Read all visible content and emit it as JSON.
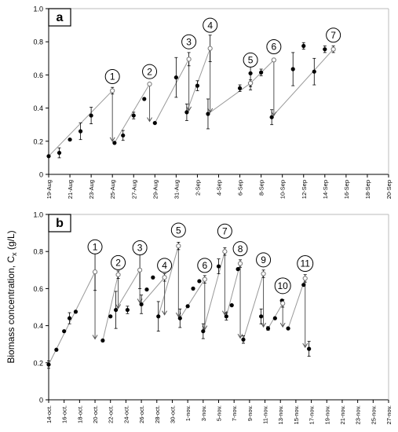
{
  "figure": {
    "y_axis_label": "Biomass concentration, C",
    "y_axis_label_sub": "x",
    "y_axis_label_unit": " (g/L)"
  },
  "chart_data": [
    {
      "type": "scatter",
      "panel": "a",
      "x_ticks": [
        "19-Aug",
        "21-Aug",
        "23-Aug",
        "25-Aug",
        "27-Aug",
        "29-Aug",
        "31-Aug",
        "2-Sep",
        "4-Sep",
        "6-Sep",
        "8-Sep",
        "10-Sep",
        "12-Sep",
        "14-Sep",
        "16-Sep",
        "18-Sep",
        "20-Sep"
      ],
      "ylim": [
        0,
        1.0
      ],
      "y_ticks": [
        "0",
        "0.2",
        "0.4",
        "0.6",
        "0.8",
        "1.0"
      ],
      "grid": false,
      "series": [
        {
          "marker": "filled",
          "points": [
            {
              "x": 0.0,
              "y": 0.11,
              "err": 0
            },
            {
              "x": 1.0,
              "y": 0.13,
              "err": 0.03
            },
            {
              "x": 2.0,
              "y": 0.21,
              "err": 0
            },
            {
              "x": 3.0,
              "y": 0.26,
              "err": 0.05
            },
            {
              "x": 4.0,
              "y": 0.355,
              "err": 0.05
            },
            {
              "x": 6.2,
              "y": 0.19,
              "err": 0
            },
            {
              "x": 7.0,
              "y": 0.235,
              "err": 0.03
            },
            {
              "x": 8.0,
              "y": 0.355,
              "err": 0.02
            },
            {
              "x": 9.0,
              "y": 0.455,
              "err": 0
            },
            {
              "x": 10.0,
              "y": 0.31,
              "err": 0
            },
            {
              "x": 12.0,
              "y": 0.585,
              "err": 0.12
            },
            {
              "x": 13.0,
              "y": 0.375,
              "err": 0.05
            },
            {
              "x": 14.0,
              "y": 0.535,
              "err": 0.03
            },
            {
              "x": 15.0,
              "y": 0.365,
              "err": 0.09
            },
            {
              "x": 18.0,
              "y": 0.52,
              "err": 0.02
            },
            {
              "x": 19.0,
              "y": 0.61,
              "err": 0.1
            },
            {
              "x": 20.0,
              "y": 0.615,
              "err": 0.02
            },
            {
              "x": 21.0,
              "y": 0.345,
              "err": 0.045
            },
            {
              "x": 23.0,
              "y": 0.635,
              "err": 0.1
            },
            {
              "x": 24.0,
              "y": 0.775,
              "err": 0.02
            },
            {
              "x": 25.0,
              "y": 0.62,
              "err": 0.08
            },
            {
              "x": 26.0,
              "y": 0.755,
              "err": 0.02
            }
          ]
        },
        {
          "marker": "open",
          "points": [
            {
              "x": 6.0,
              "y": 0.505,
              "err": 0.02
            },
            {
              "x": 9.5,
              "y": 0.545,
              "err": 0
            },
            {
              "x": 13.2,
              "y": 0.695,
              "err": 0.04
            },
            {
              "x": 15.2,
              "y": 0.76,
              "err": 0.08
            },
            {
              "x": 19.0,
              "y": 0.55,
              "err": 0.02
            },
            {
              "x": 21.2,
              "y": 0.69,
              "err": 0.01
            },
            {
              "x": 26.8,
              "y": 0.755,
              "err": 0.02
            }
          ]
        }
      ],
      "fits": [
        [
          [
            0.0,
            0.11
          ],
          [
            6.0,
            0.505
          ]
        ],
        [
          [
            6.2,
            0.19
          ],
          [
            9.5,
            0.545
          ]
        ],
        [
          [
            10.0,
            0.31
          ],
          [
            13.2,
            0.695
          ]
        ],
        [
          [
            13.0,
            0.375
          ],
          [
            15.2,
            0.76
          ]
        ],
        [
          [
            15.0,
            0.365
          ],
          [
            19.0,
            0.55
          ]
        ],
        [
          [
            19.0,
            0.55
          ],
          [
            21.2,
            0.69
          ]
        ],
        [
          [
            21.0,
            0.345
          ],
          [
            26.8,
            0.755
          ]
        ]
      ],
      "drops": [
        [
          6.0,
          0.505,
          0.19
        ],
        [
          9.5,
          0.545,
          0.31
        ],
        [
          13.2,
          0.695,
          0.375
        ],
        [
          15.2,
          0.76,
          0.365
        ],
        [
          19.0,
          0.55,
          0.52
        ],
        [
          21.2,
          0.69,
          0.345
        ]
      ],
      "annotations": [
        {
          "label": "1",
          "x": 6.0,
          "y": 0.59
        },
        {
          "label": "2",
          "x": 9.5,
          "y": 0.62
        },
        {
          "label": "3",
          "x": 13.2,
          "y": 0.8
        },
        {
          "label": "4",
          "x": 15.2,
          "y": 0.9
        },
        {
          "label": "5",
          "x": 19.0,
          "y": 0.69
        },
        {
          "label": "6",
          "x": 21.2,
          "y": 0.77
        },
        {
          "label": "7",
          "x": 26.8,
          "y": 0.84
        }
      ]
    },
    {
      "type": "scatter",
      "panel": "b",
      "x_ticks": [
        "14-oct.",
        "16-oct.",
        "18-oct.",
        "20-oct.",
        "22-oct.",
        "24-oct.",
        "26-oct.",
        "28-oct.",
        "30-oct.",
        "1-nov.",
        "3-nov.",
        "5-nov.",
        "7-nov.",
        "9-nov.",
        "11-nov.",
        "13-nov.",
        "15-nov.",
        "17-nov.",
        "19-nov.",
        "21-nov.",
        "23-nov.",
        "25-nov.",
        "27-nov."
      ],
      "ylim": [
        0,
        1.0
      ],
      "y_ticks": [
        "0",
        "0.2",
        "0.4",
        "0.6",
        "0.8",
        "1.0"
      ],
      "grid": false,
      "series": [
        {
          "marker": "filled",
          "points": [
            {
              "x": 0.0,
              "y": 0.19,
              "err": 0.02
            },
            {
              "x": 1.0,
              "y": 0.27,
              "err": 0
            },
            {
              "x": 2.0,
              "y": 0.37,
              "err": 0
            },
            {
              "x": 2.7,
              "y": 0.44,
              "err": 0.03
            },
            {
              "x": 3.5,
              "y": 0.475,
              "err": 0
            },
            {
              "x": 7.0,
              "y": 0.32,
              "err": 0
            },
            {
              "x": 8.0,
              "y": 0.45,
              "err": 0
            },
            {
              "x": 8.7,
              "y": 0.485,
              "err": 0.1
            },
            {
              "x": 10.2,
              "y": 0.485,
              "err": 0.02
            },
            {
              "x": 12.0,
              "y": 0.515,
              "err": 0.05
            },
            {
              "x": 12.7,
              "y": 0.595,
              "err": 0
            },
            {
              "x": 13.5,
              "y": 0.66,
              "err": 0
            },
            {
              "x": 14.2,
              "y": 0.45,
              "err": 0.08
            },
            {
              "x": 17.0,
              "y": 0.44,
              "err": 0.05
            },
            {
              "x": 18.0,
              "y": 0.505,
              "err": 0
            },
            {
              "x": 18.7,
              "y": 0.6,
              "err": 0
            },
            {
              "x": 19.5,
              "y": 0.64,
              "err": 0
            },
            {
              "x": 20.0,
              "y": 0.37,
              "err": 0.04
            },
            {
              "x": 22.0,
              "y": 0.72,
              "err": 0.04
            },
            {
              "x": 23.0,
              "y": 0.45,
              "err": 0.02
            },
            {
              "x": 23.7,
              "y": 0.51,
              "err": 0
            },
            {
              "x": 24.5,
              "y": 0.705,
              "err": 0
            },
            {
              "x": 25.2,
              "y": 0.325,
              "err": 0.02
            },
            {
              "x": 27.5,
              "y": 0.45,
              "err": 0.04
            },
            {
              "x": 28.4,
              "y": 0.385,
              "err": 0.01
            },
            {
              "x": 29.3,
              "y": 0.44,
              "err": 0
            },
            {
              "x": 30.2,
              "y": 0.535,
              "err": 0
            },
            {
              "x": 31.0,
              "y": 0.385,
              "err": 0
            },
            {
              "x": 33.0,
              "y": 0.62,
              "err": 0
            },
            {
              "x": 33.7,
              "y": 0.275,
              "err": 0.04
            }
          ]
        },
        {
          "marker": "open",
          "points": [
            {
              "x": 6.0,
              "y": 0.69,
              "err": 0.1
            },
            {
              "x": 9.0,
              "y": 0.675,
              "err": 0.02
            },
            {
              "x": 11.8,
              "y": 0.7,
              "err": 0.1
            },
            {
              "x": 15.0,
              "y": 0.66,
              "err": 0.02
            },
            {
              "x": 16.8,
              "y": 0.83,
              "err": 0.02
            },
            {
              "x": 20.2,
              "y": 0.65,
              "err": 0.02
            },
            {
              "x": 22.8,
              "y": 0.8,
              "err": 0.02
            },
            {
              "x": 24.8,
              "y": 0.735,
              "err": 0.02
            },
            {
              "x": 27.8,
              "y": 0.68,
              "err": 0.02
            },
            {
              "x": 30.3,
              "y": 0.52,
              "err": 0.02
            },
            {
              "x": 33.2,
              "y": 0.655,
              "err": 0.02
            }
          ]
        }
      ],
      "fits": [
        [
          [
            0.0,
            0.19
          ],
          [
            6.0,
            0.69
          ]
        ],
        [
          [
            7.0,
            0.32
          ],
          [
            9.0,
            0.675
          ]
        ],
        [
          [
            8.7,
            0.485
          ],
          [
            11.8,
            0.7
          ]
        ],
        [
          [
            12.0,
            0.515
          ],
          [
            15.0,
            0.66
          ]
        ],
        [
          [
            14.2,
            0.45
          ],
          [
            16.8,
            0.83
          ]
        ],
        [
          [
            17.0,
            0.44
          ],
          [
            20.2,
            0.65
          ]
        ],
        [
          [
            20.0,
            0.37
          ],
          [
            22.8,
            0.8
          ]
        ],
        [
          [
            23.0,
            0.45
          ],
          [
            24.8,
            0.735
          ]
        ],
        [
          [
            25.2,
            0.325
          ],
          [
            27.8,
            0.68
          ]
        ],
        [
          [
            28.4,
            0.385
          ],
          [
            30.3,
            0.52
          ]
        ],
        [
          [
            31.0,
            0.385
          ],
          [
            33.2,
            0.655
          ]
        ]
      ],
      "drops": [
        [
          6.0,
          0.69,
          0.32
        ],
        [
          9.0,
          0.675,
          0.485
        ],
        [
          11.8,
          0.7,
          0.515
        ],
        [
          15.0,
          0.66,
          0.45
        ],
        [
          16.8,
          0.83,
          0.44
        ],
        [
          20.2,
          0.65,
          0.37
        ],
        [
          22.8,
          0.8,
          0.45
        ],
        [
          24.8,
          0.735,
          0.325
        ],
        [
          27.8,
          0.68,
          0.385
        ],
        [
          30.3,
          0.52,
          0.385
        ],
        [
          33.2,
          0.655,
          0.275
        ]
      ],
      "annotations": [
        {
          "label": "1",
          "x": 6.0,
          "y": 0.825
        },
        {
          "label": "2",
          "x": 9.0,
          "y": 0.74
        },
        {
          "label": "3",
          "x": 11.8,
          "y": 0.82
        },
        {
          "label": "4",
          "x": 15.0,
          "y": 0.725
        },
        {
          "label": "5",
          "x": 16.8,
          "y": 0.915
        },
        {
          "label": "6",
          "x": 20.2,
          "y": 0.725
        },
        {
          "label": "7",
          "x": 22.8,
          "y": 0.91
        },
        {
          "label": "8",
          "x": 24.8,
          "y": 0.815
        },
        {
          "label": "9",
          "x": 27.8,
          "y": 0.755
        },
        {
          "label": "10",
          "x": 30.3,
          "y": 0.615
        },
        {
          "label": "11",
          "x": 33.2,
          "y": 0.735
        }
      ]
    }
  ]
}
